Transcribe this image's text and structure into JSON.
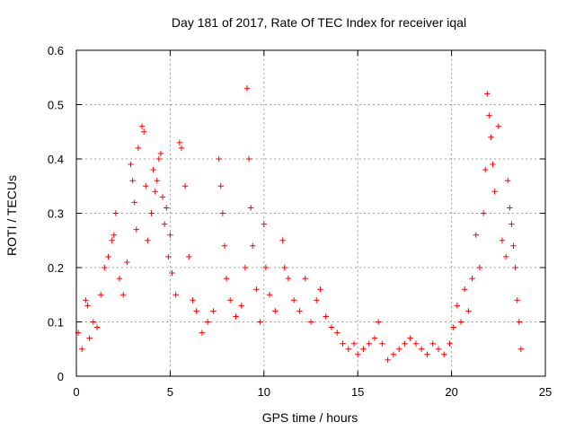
{
  "chart_data": {
    "type": "scatter",
    "title": "Day 181 of 2017, Rate Of TEC Index for receiver iqal",
    "xlabel": "GPS time / hours",
    "ylabel": "ROTI / TECUs",
    "xlim": [
      0,
      25
    ],
    "ylim": [
      0,
      0.6
    ],
    "xticks": [
      0,
      5,
      10,
      15,
      20,
      25
    ],
    "yticks": [
      0,
      0.1,
      0.2,
      0.3,
      0.4,
      0.5,
      0.6
    ],
    "xtick_labels": [
      "0",
      "5",
      "10",
      "15",
      "20",
      "25"
    ],
    "ytick_labels": [
      "0",
      "0.1",
      "0.2",
      "0.3",
      "0.4",
      "0.5",
      "0.6"
    ],
    "grid": true,
    "marker": "+",
    "marker_color": "#ff0000",
    "series": [
      {
        "name": "ROTI",
        "points": [
          [
            0.1,
            0.08
          ],
          [
            0.3,
            0.05
          ],
          [
            0.5,
            0.14
          ],
          [
            0.6,
            0.13
          ],
          [
            0.7,
            0.07
          ],
          [
            0.9,
            0.1
          ],
          [
            1.1,
            0.09
          ],
          [
            1.3,
            0.15
          ],
          [
            1.5,
            0.2
          ],
          [
            1.7,
            0.22
          ],
          [
            1.9,
            0.25
          ],
          [
            2.0,
            0.26
          ],
          [
            2.1,
            0.3
          ],
          [
            2.3,
            0.18
          ],
          [
            2.5,
            0.15
          ],
          [
            2.7,
            0.21
          ],
          [
            2.9,
            0.39
          ],
          [
            3.0,
            0.36
          ],
          [
            3.1,
            0.32
          ],
          [
            3.2,
            0.27
          ],
          [
            3.3,
            0.42
          ],
          [
            3.5,
            0.46
          ],
          [
            3.6,
            0.45
          ],
          [
            3.7,
            0.35
          ],
          [
            3.8,
            0.25
          ],
          [
            4.0,
            0.3
          ],
          [
            4.1,
            0.38
          ],
          [
            4.2,
            0.34
          ],
          [
            4.3,
            0.36
          ],
          [
            4.4,
            0.4
          ],
          [
            4.5,
            0.41
          ],
          [
            4.6,
            0.33
          ],
          [
            4.7,
            0.28
          ],
          [
            4.8,
            0.31
          ],
          [
            4.9,
            0.22
          ],
          [
            5.0,
            0.26
          ],
          [
            5.1,
            0.19
          ],
          [
            5.3,
            0.15
          ],
          [
            5.5,
            0.43
          ],
          [
            5.6,
            0.42
          ],
          [
            5.8,
            0.35
          ],
          [
            6.0,
            0.22
          ],
          [
            6.2,
            0.14
          ],
          [
            6.4,
            0.12
          ],
          [
            6.7,
            0.08
          ],
          [
            7.0,
            0.1
          ],
          [
            7.3,
            0.12
          ],
          [
            7.6,
            0.4
          ],
          [
            7.7,
            0.35
          ],
          [
            7.8,
            0.3
          ],
          [
            7.9,
            0.24
          ],
          [
            8.0,
            0.18
          ],
          [
            8.2,
            0.14
          ],
          [
            8.5,
            0.11
          ],
          [
            8.8,
            0.13
          ],
          [
            9.0,
            0.2
          ],
          [
            9.1,
            0.53
          ],
          [
            9.2,
            0.4
          ],
          [
            9.3,
            0.31
          ],
          [
            9.4,
            0.24
          ],
          [
            9.6,
            0.16
          ],
          [
            9.8,
            0.1
          ],
          [
            10.0,
            0.28
          ],
          [
            10.1,
            0.2
          ],
          [
            10.3,
            0.15
          ],
          [
            10.6,
            0.12
          ],
          [
            11.0,
            0.25
          ],
          [
            11.1,
            0.2
          ],
          [
            11.3,
            0.18
          ],
          [
            11.6,
            0.14
          ],
          [
            11.9,
            0.12
          ],
          [
            12.2,
            0.18
          ],
          [
            12.5,
            0.1
          ],
          [
            12.8,
            0.14
          ],
          [
            13.0,
            0.16
          ],
          [
            13.3,
            0.11
          ],
          [
            13.6,
            0.09
          ],
          [
            13.9,
            0.08
          ],
          [
            14.2,
            0.06
          ],
          [
            14.5,
            0.05
          ],
          [
            14.8,
            0.06
          ],
          [
            15.0,
            0.04
          ],
          [
            15.3,
            0.05
          ],
          [
            15.6,
            0.06
          ],
          [
            15.9,
            0.07
          ],
          [
            16.1,
            0.1
          ],
          [
            16.3,
            0.06
          ],
          [
            16.6,
            0.03
          ],
          [
            16.9,
            0.04
          ],
          [
            17.2,
            0.05
          ],
          [
            17.5,
            0.06
          ],
          [
            17.8,
            0.07
          ],
          [
            18.1,
            0.06
          ],
          [
            18.4,
            0.05
          ],
          [
            18.7,
            0.04
          ],
          [
            19.0,
            0.06
          ],
          [
            19.3,
            0.05
          ],
          [
            19.6,
            0.04
          ],
          [
            19.9,
            0.06
          ],
          [
            20.1,
            0.09
          ],
          [
            20.3,
            0.13
          ],
          [
            20.5,
            0.1
          ],
          [
            20.7,
            0.16
          ],
          [
            20.9,
            0.12
          ],
          [
            21.1,
            0.18
          ],
          [
            21.3,
            0.26
          ],
          [
            21.5,
            0.2
          ],
          [
            21.7,
            0.3
          ],
          [
            21.8,
            0.38
          ],
          [
            21.9,
            0.52
          ],
          [
            22.0,
            0.48
          ],
          [
            22.1,
            0.44
          ],
          [
            22.2,
            0.39
          ],
          [
            22.3,
            0.34
          ],
          [
            22.5,
            0.46
          ],
          [
            22.7,
            0.25
          ],
          [
            22.9,
            0.22
          ],
          [
            23.0,
            0.36
          ],
          [
            23.1,
            0.31
          ],
          [
            23.2,
            0.28
          ],
          [
            23.3,
            0.24
          ],
          [
            23.4,
            0.2
          ],
          [
            23.5,
            0.14
          ],
          [
            23.6,
            0.1
          ],
          [
            23.7,
            0.05
          ]
        ]
      }
    ]
  }
}
